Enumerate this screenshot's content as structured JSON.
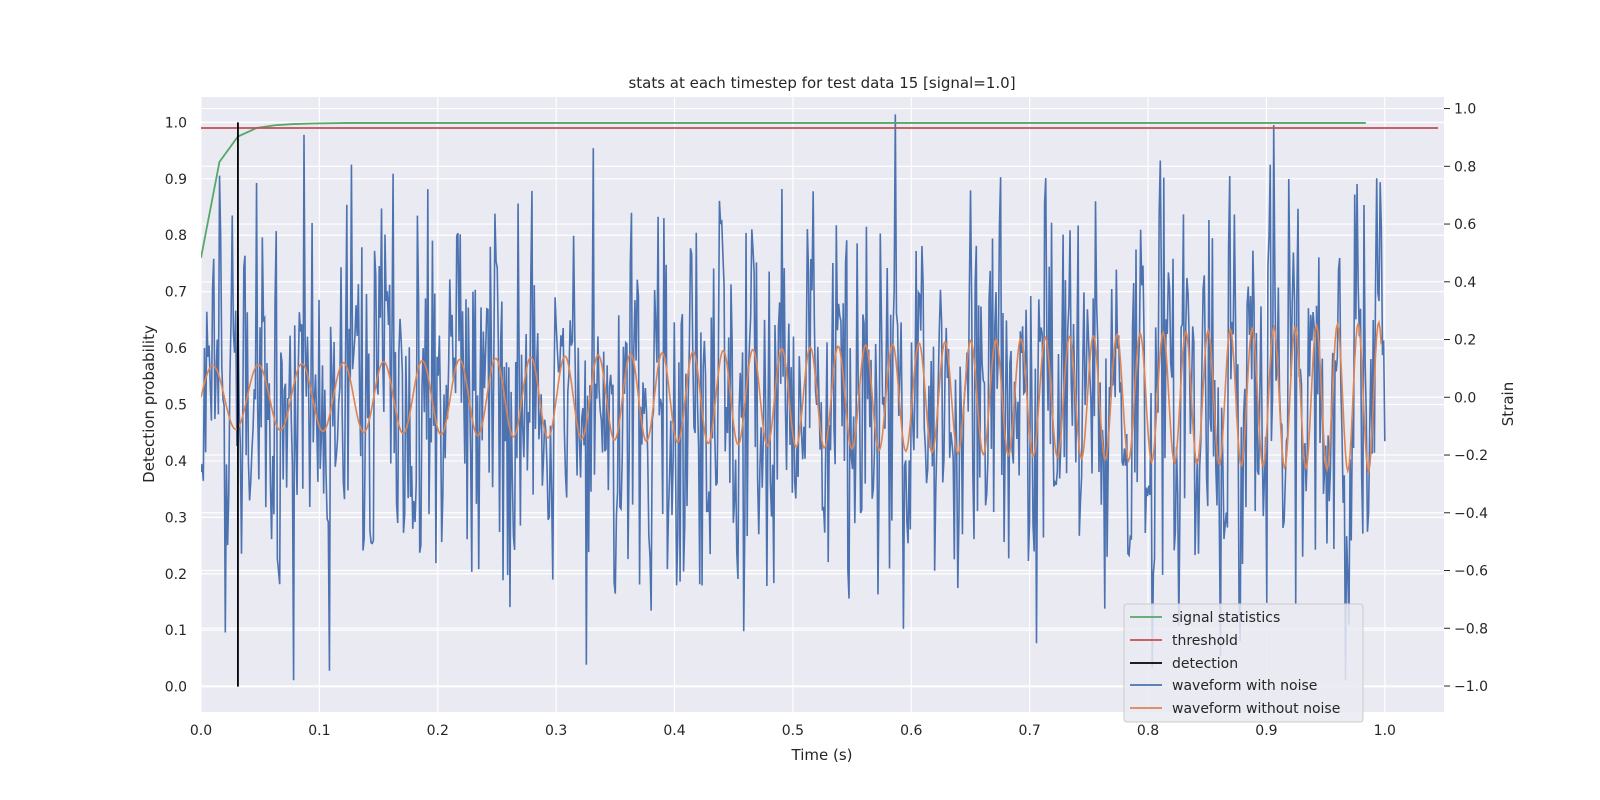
{
  "chart_data": {
    "type": "line",
    "title": "stats at each timestep for test data 15 [signal=1.0]",
    "xlabel": "Time (s)",
    "ylabel": "Detection probability",
    "y2label": "Strain",
    "xlim": [
      0.0,
      1.05
    ],
    "ylim": [
      -0.045,
      1.045
    ],
    "y2lim": [
      -1.09,
      1.04
    ],
    "xticks": [
      "0.0",
      "0.1",
      "0.2",
      "0.3",
      "0.4",
      "0.5",
      "0.6",
      "0.7",
      "0.8",
      "0.9",
      "1.0"
    ],
    "xtick_values": [
      0.0,
      0.1,
      0.2,
      0.3,
      0.4,
      0.5,
      0.6,
      0.7,
      0.8,
      0.9,
      1.0
    ],
    "yticks": [
      "0.0",
      "0.1",
      "0.2",
      "0.3",
      "0.4",
      "0.5",
      "0.6",
      "0.7",
      "0.8",
      "0.9",
      "1.0"
    ],
    "ytick_values": [
      0.0,
      0.1,
      0.2,
      0.3,
      0.4,
      0.5,
      0.6,
      0.7,
      0.8,
      0.9,
      1.0
    ],
    "y2ticks": [
      "−1.0",
      "−0.8",
      "−0.6",
      "−0.4",
      "−0.2",
      "0.0",
      "0.2",
      "0.4",
      "0.6",
      "0.8",
      "1.0"
    ],
    "y2tick_values": [
      -1.0,
      -0.8,
      -0.6,
      -0.4,
      -0.2,
      0.0,
      0.2,
      0.4,
      0.6,
      0.8,
      1.0
    ],
    "grid": true,
    "legend_position": "lower-right",
    "series": [
      {
        "name": "signal statistics",
        "color": "#55a868",
        "axis": "left",
        "x": [
          0.0,
          0.0156,
          0.0312,
          0.0469,
          0.0625,
          0.0781,
          0.0938,
          0.125,
          0.25,
          0.5,
          0.75,
          0.984
        ],
        "y": [
          0.76,
          0.93,
          0.975,
          0.99,
          0.995,
          0.997,
          0.998,
          0.999,
          0.999,
          0.999,
          0.999,
          0.999
        ]
      },
      {
        "name": "threshold",
        "color": "#c44e52",
        "axis": "left",
        "x": [
          0.0,
          1.045
        ],
        "y": [
          0.99,
          0.99
        ]
      },
      {
        "name": "detection",
        "color": "#000000",
        "axis": "left",
        "x": [
          0.0312,
          0.0312
        ],
        "y": [
          0.0,
          1.0
        ]
      },
      {
        "name": "waveform with noise",
        "color": "#4c72b0",
        "axis": "right",
        "noise_amplitude": 0.32,
        "x_start": 0.0,
        "x_end": 1.0,
        "n_points": 1024
      },
      {
        "name": "waveform without noise",
        "color": "#dd8452",
        "axis": "right",
        "x_start": 0.0,
        "x_end": 0.997,
        "n_points": 1024,
        "amp_start": 0.11,
        "amp_end": 0.26,
        "freq_start_hz": 25,
        "freq_end_hz": 58
      }
    ]
  }
}
